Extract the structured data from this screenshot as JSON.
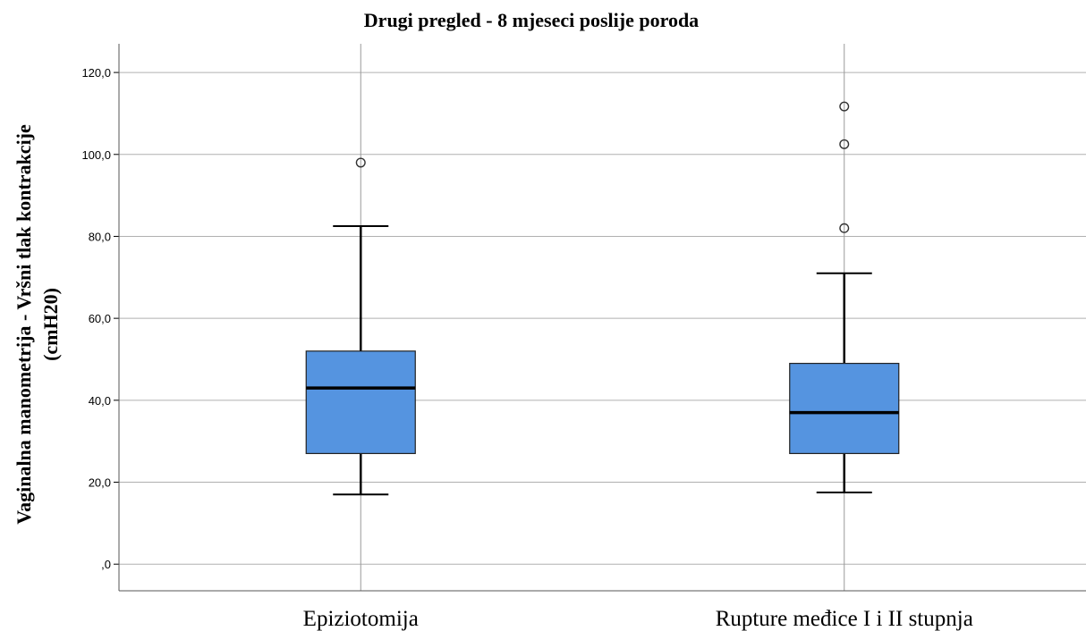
{
  "chart_data": {
    "type": "boxplot",
    "title": "Drugi pregled - 8 mjeseci poslije poroda",
    "ylabel_lines": [
      "Vaginalna manometrija - Vršni tlak kontrakcije",
      "(cmH20)"
    ],
    "xlabel": "",
    "ylim": [
      -6.5,
      127
    ],
    "yticks": [
      {
        "value": 0,
        "label": ",0"
      },
      {
        "value": 20,
        "label": "20,0"
      },
      {
        "value": 40,
        "label": "40,0"
      },
      {
        "value": 60,
        "label": "60,0"
      },
      {
        "value": 80,
        "label": "80,0"
      },
      {
        "value": 100,
        "label": "100,0"
      },
      {
        "value": 120,
        "label": "120,0"
      }
    ],
    "grid": "horizontal",
    "box_color": "#5594e0",
    "categories": [
      "Epiziotomija",
      "Rupture međice I i II stupnja"
    ],
    "boxes": [
      {
        "whisker_low": 17,
        "q1": 27,
        "median": 43,
        "q3": 52,
        "whisker_high": 82.5,
        "outliers": [
          98
        ]
      },
      {
        "whisker_low": 17.5,
        "q1": 27,
        "median": 37,
        "q3": 49,
        "whisker_high": 71,
        "outliers": [
          82,
          102.5,
          111.7
        ]
      }
    ]
  }
}
